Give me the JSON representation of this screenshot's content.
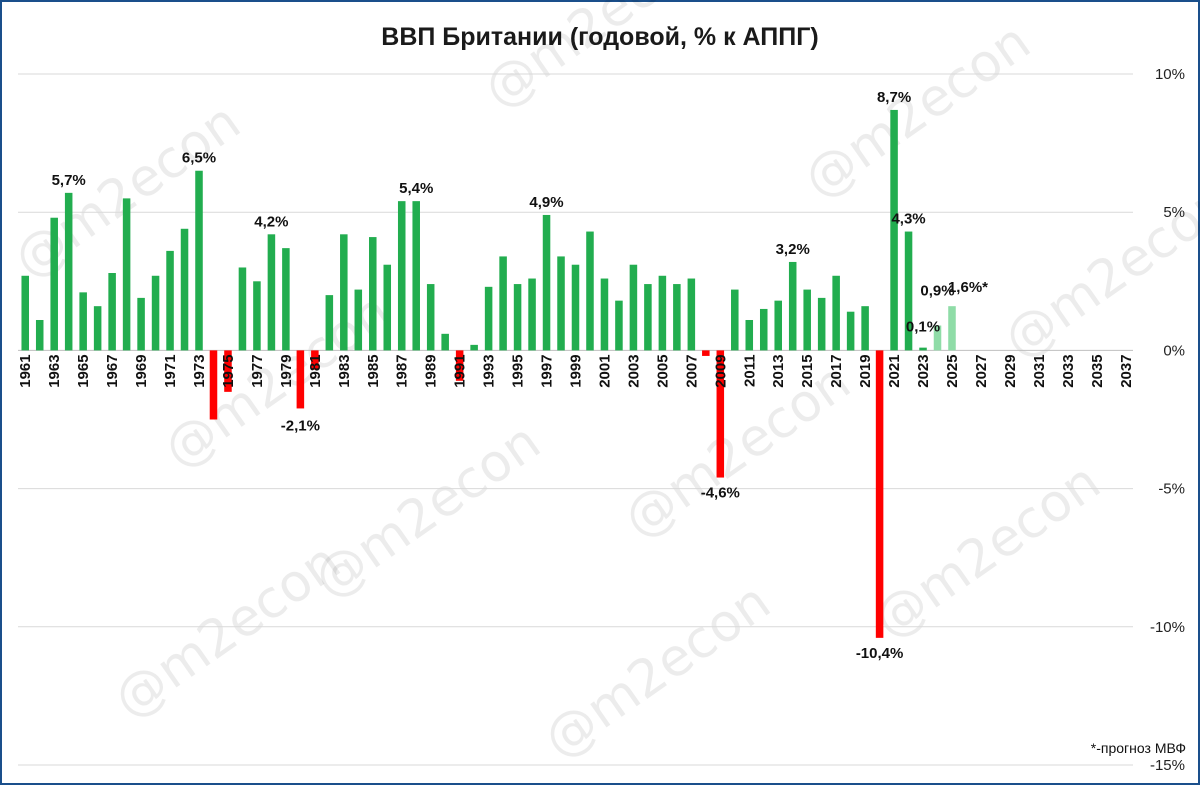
{
  "watermark": "@m2econ",
  "footnote": "*-прогноз МВФ",
  "colors": {
    "positive": "#22ad4f",
    "negative": "#ff0000",
    "forecast": "#8fdca7",
    "grid": "#d9d9d9",
    "frame": "#1a4f8b"
  },
  "chart_data": {
    "type": "bar",
    "title": "ВВП Британии (годовой, % к АППГ)",
    "xlabel": "",
    "ylabel": "",
    "ylim": [
      -15,
      10
    ],
    "yticks": [
      10,
      5,
      0,
      -5,
      -10,
      -15
    ],
    "ytick_labels": [
      "10%",
      "5%",
      "0%",
      "-5%",
      "-10%",
      "-15%"
    ],
    "y_axis_side": "right",
    "grid": true,
    "categories": [
      1961,
      1962,
      1963,
      1964,
      1965,
      1966,
      1967,
      1968,
      1969,
      1970,
      1971,
      1972,
      1973,
      1974,
      1975,
      1976,
      1977,
      1978,
      1979,
      1980,
      1981,
      1982,
      1983,
      1984,
      1985,
      1986,
      1987,
      1988,
      1989,
      1990,
      1991,
      1992,
      1993,
      1994,
      1995,
      1996,
      1997,
      1998,
      1999,
      2000,
      2001,
      2002,
      2003,
      2004,
      2005,
      2006,
      2007,
      2008,
      2009,
      2010,
      2011,
      2012,
      2013,
      2014,
      2015,
      2016,
      2017,
      2018,
      2019,
      2020,
      2021,
      2022,
      2023,
      2024,
      2025,
      2026,
      2027,
      2028,
      2029,
      2030,
      2031,
      2032,
      2033,
      2034,
      2035,
      2036,
      2037
    ],
    "xtick_labels": [
      "1961",
      "1963",
      "1965",
      "1967",
      "1969",
      "1971",
      "1973",
      "1975",
      "1977",
      "1979",
      "1981",
      "1983",
      "1985",
      "1987",
      "1989",
      "1991",
      "1993",
      "1995",
      "1997",
      "1999",
      "2001",
      "2003",
      "2005",
      "2007",
      "2009",
      "2011",
      "2013",
      "2015",
      "2017",
      "2019",
      "2021",
      "2023",
      "2025",
      "2027",
      "2029",
      "2031",
      "2033",
      "2035",
      "2037"
    ],
    "values": [
      2.7,
      1.1,
      4.8,
      5.7,
      2.1,
      1.6,
      2.8,
      5.5,
      1.9,
      2.7,
      3.6,
      4.4,
      6.5,
      -2.5,
      -1.5,
      3.0,
      2.5,
      4.2,
      3.7,
      -2.1,
      -0.7,
      2.0,
      4.2,
      2.2,
      4.1,
      3.1,
      5.4,
      5.4,
      2.4,
      0.6,
      -1.1,
      0.2,
      2.3,
      3.4,
      2.4,
      2.6,
      4.9,
      3.4,
      3.1,
      4.3,
      2.6,
      1.8,
      3.1,
      2.4,
      2.7,
      2.4,
      2.6,
      -0.2,
      -4.6,
      2.2,
      1.1,
      1.5,
      1.8,
      3.2,
      2.2,
      1.9,
      2.7,
      1.4,
      1.6,
      -10.4,
      8.7,
      4.3,
      0.1,
      0.9,
      1.6,
      null,
      null,
      null,
      null,
      null,
      null,
      null,
      null,
      null,
      null,
      null,
      null
    ],
    "forecast_years": [
      2024,
      2025
    ],
    "data_labels": [
      {
        "year": 1964,
        "text": "5,7%"
      },
      {
        "year": 1973,
        "text": "6,5%"
      },
      {
        "year": 1978,
        "text": "4,2%"
      },
      {
        "year": 1980,
        "text": "-2,1%"
      },
      {
        "year": 1988,
        "text": "5,4%"
      },
      {
        "year": 1997,
        "text": "4,9%"
      },
      {
        "year": 2009,
        "text": "-4,6%"
      },
      {
        "year": 2014,
        "text": "3,2%"
      },
      {
        "year": 2020,
        "text": "-10,4%"
      },
      {
        "year": 2021,
        "text": "8,7%"
      },
      {
        "year": 2022,
        "text": "4,3%"
      },
      {
        "year": 2023,
        "text": "0,1%"
      },
      {
        "year": 2024,
        "text": "0,9%"
      },
      {
        "year": 2025,
        "text": "1,6%*"
      }
    ]
  }
}
